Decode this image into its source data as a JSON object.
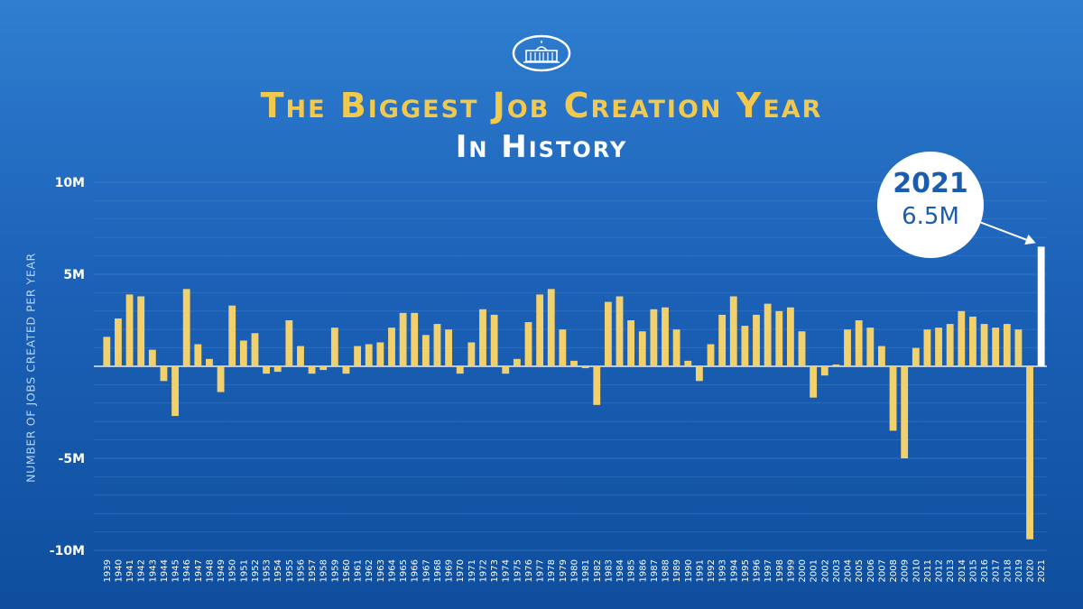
{
  "header": {
    "title": "The Biggest Job Creation Year",
    "subtitle": "In History"
  },
  "colors": {
    "bar": "#f2d06b",
    "highlight_bar": "#ffffff",
    "background": "#1c62b8",
    "grid": "#4d87cc"
  },
  "callout": {
    "year": "2021",
    "value": "6.5M"
  },
  "chart_data": {
    "type": "bar",
    "ylabel": "NUMBER OF JOBS CREATED PER YEAR",
    "ylim": [
      -10,
      10
    ],
    "y_unit": "millions of jobs",
    "yticks": [
      {
        "value": 10,
        "label": "10M"
      },
      {
        "value": 5,
        "label": "5M"
      },
      {
        "value": -5,
        "label": "-5M"
      },
      {
        "value": -10,
        "label": "-10M"
      }
    ],
    "grid": true,
    "highlight": "2021",
    "categories": [
      "1939",
      "1940",
      "1941",
      "1942",
      "1943",
      "1944",
      "1945",
      "1946",
      "1947",
      "1948",
      "1949",
      "1950",
      "1951",
      "1952",
      "1953",
      "1954",
      "1955",
      "1956",
      "1957",
      "1958",
      "1959",
      "1960",
      "1961",
      "1962",
      "1963",
      "1964",
      "1965",
      "1966",
      "1967",
      "1968",
      "1969",
      "1970",
      "1971",
      "1972",
      "1973",
      "1974",
      "1975",
      "1976",
      "1977",
      "1978",
      "1979",
      "1980",
      "1981",
      "1982",
      "1983",
      "1984",
      "1985",
      "1986",
      "1987",
      "1988",
      "1989",
      "1990",
      "1991",
      "1992",
      "1993",
      "1994",
      "1995",
      "1996",
      "1997",
      "1998",
      "1999",
      "2000",
      "2001",
      "2002",
      "2003",
      "2004",
      "2005",
      "2006",
      "2007",
      "2008",
      "2009",
      "2010",
      "2011",
      "2012",
      "2013",
      "2014",
      "2015",
      "2016",
      "2017",
      "2018",
      "2019",
      "2020",
      "2021"
    ],
    "values": [
      1.6,
      2.6,
      3.9,
      3.8,
      0.9,
      -0.8,
      -2.7,
      4.2,
      1.2,
      0.4,
      -1.4,
      3.3,
      1.4,
      1.8,
      -0.4,
      -0.3,
      2.5,
      1.1,
      -0.4,
      -0.2,
      2.1,
      -0.4,
      1.1,
      1.2,
      1.3,
      2.1,
      2.9,
      2.9,
      1.7,
      2.3,
      2.0,
      -0.4,
      1.3,
      3.1,
      2.8,
      -0.4,
      0.4,
      2.4,
      3.9,
      4.2,
      2.0,
      0.3,
      -0.1,
      -2.1,
      3.5,
      3.8,
      2.5,
      1.9,
      3.1,
      3.2,
      2.0,
      0.3,
      -0.8,
      1.2,
      2.8,
      3.8,
      2.2,
      2.8,
      3.4,
      3.0,
      3.2,
      1.9,
      -1.7,
      -0.5,
      0.1,
      2.0,
      2.5,
      2.1,
      1.1,
      -3.5,
      -5.0,
      1.0,
      2.0,
      2.1,
      2.3,
      3.0,
      2.7,
      2.3,
      2.1,
      2.3,
      2.0,
      -9.4,
      6.5
    ]
  }
}
